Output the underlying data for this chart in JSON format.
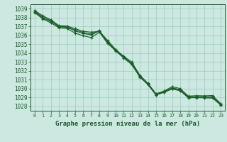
{
  "x": [
    0,
    1,
    2,
    3,
    4,
    5,
    6,
    7,
    8,
    9,
    10,
    11,
    12,
    13,
    14,
    15,
    16,
    17,
    18,
    19,
    20,
    21,
    22,
    23
  ],
  "line1": [
    1038.8,
    1038.2,
    1037.75,
    1037.1,
    1037.05,
    1036.75,
    1036.45,
    1036.35,
    1036.45,
    1035.45,
    1034.42,
    1033.65,
    1033.0,
    1031.52,
    1030.6,
    1029.42,
    1029.72,
    1030.22,
    1030.0,
    1029.15,
    1029.2,
    1029.18,
    1029.22,
    1028.3
  ],
  "line2": [
    1038.55,
    1037.85,
    1037.4,
    1036.85,
    1036.75,
    1036.25,
    1035.95,
    1035.75,
    1036.35,
    1035.1,
    1034.25,
    1033.45,
    1032.7,
    1031.3,
    1030.45,
    1029.28,
    1029.58,
    1029.95,
    1029.75,
    1028.95,
    1028.98,
    1028.95,
    1028.92,
    1028.15
  ],
  "line3": [
    1038.65,
    1037.95,
    1037.55,
    1036.95,
    1036.9,
    1036.5,
    1036.2,
    1036.05,
    1036.5,
    1035.28,
    1034.33,
    1033.55,
    1032.85,
    1031.4,
    1030.52,
    1029.35,
    1029.65,
    1030.08,
    1029.88,
    1029.05,
    1029.08,
    1029.07,
    1029.07,
    1028.22
  ],
  "line4": [
    1038.75,
    1038.05,
    1037.65,
    1037.0,
    1036.96,
    1036.6,
    1036.32,
    1036.15,
    1036.55,
    1035.18,
    1034.35,
    1033.58,
    1032.78,
    1031.35,
    1030.48,
    1029.3,
    1029.6,
    1030.02,
    1029.82,
    1029.0,
    1029.03,
    1029.02,
    1029.0,
    1028.18
  ],
  "bg_color": "#cce8e0",
  "grid_color": "#99ccbb",
  "line_color": "#1a5c2a",
  "marker": "+",
  "title": "Graphe pression niveau de la mer (hPa)",
  "tick_color": "#1a5c2a",
  "ylim": [
    1027.5,
    1039.5
  ],
  "xlim": [
    -0.5,
    23.5
  ],
  "yticks": [
    1028,
    1029,
    1030,
    1031,
    1032,
    1033,
    1034,
    1035,
    1036,
    1037,
    1038,
    1039
  ],
  "xticks": [
    0,
    1,
    2,
    3,
    4,
    5,
    6,
    7,
    8,
    9,
    10,
    11,
    12,
    13,
    14,
    15,
    16,
    17,
    18,
    19,
    20,
    21,
    22,
    23
  ]
}
